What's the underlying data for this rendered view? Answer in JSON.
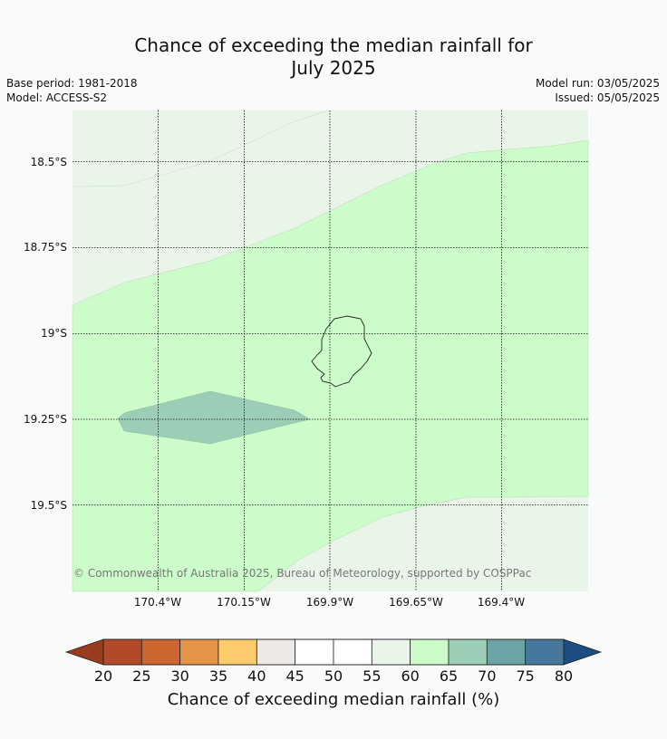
{
  "title_line1": "Chance of exceeding the median rainfall for",
  "title_line2": "July 2025",
  "base_period": "Base period: 1981-2018",
  "model": "Model: ACCESS-S2",
  "model_run": "Model run: 03/05/2025",
  "issued": "Issued: 05/05/2025",
  "lat_labels": [
    "18.5°S",
    "18.75°S",
    "19°S",
    "19.25°S",
    "19.5°S"
  ],
  "lon_labels": [
    "170.4°W",
    "170.15°W",
    "169.9°W",
    "169.65°W",
    "169.4°W"
  ],
  "copyright": "© Commonwealth of Australia 2025, Bureau of Meteorology, supported by COSPPac",
  "colorbar": {
    "title": "Chance of exceeding median rainfall (%)",
    "ticks": [
      "20",
      "25",
      "30",
      "35",
      "40",
      "45",
      "50",
      "55",
      "60",
      "65",
      "70",
      "75",
      "80"
    ],
    "under_color": "#9a3a20",
    "over_color": "#1c4d80",
    "colors": [
      "#b34a27",
      "#cd6530",
      "#e39446",
      "#fdcb6b",
      "#ece9e6",
      "#ffffff",
      "#ffffff",
      "#eaf5ea",
      "#ccfcca",
      "#9ccdb7",
      "#6da3a5",
      "#45789c"
    ]
  },
  "map_colors": {
    "band_55_60": "#eaf5ea",
    "band_60_65": "#ccfcca",
    "band_65_70": "#9ccdb7"
  }
}
